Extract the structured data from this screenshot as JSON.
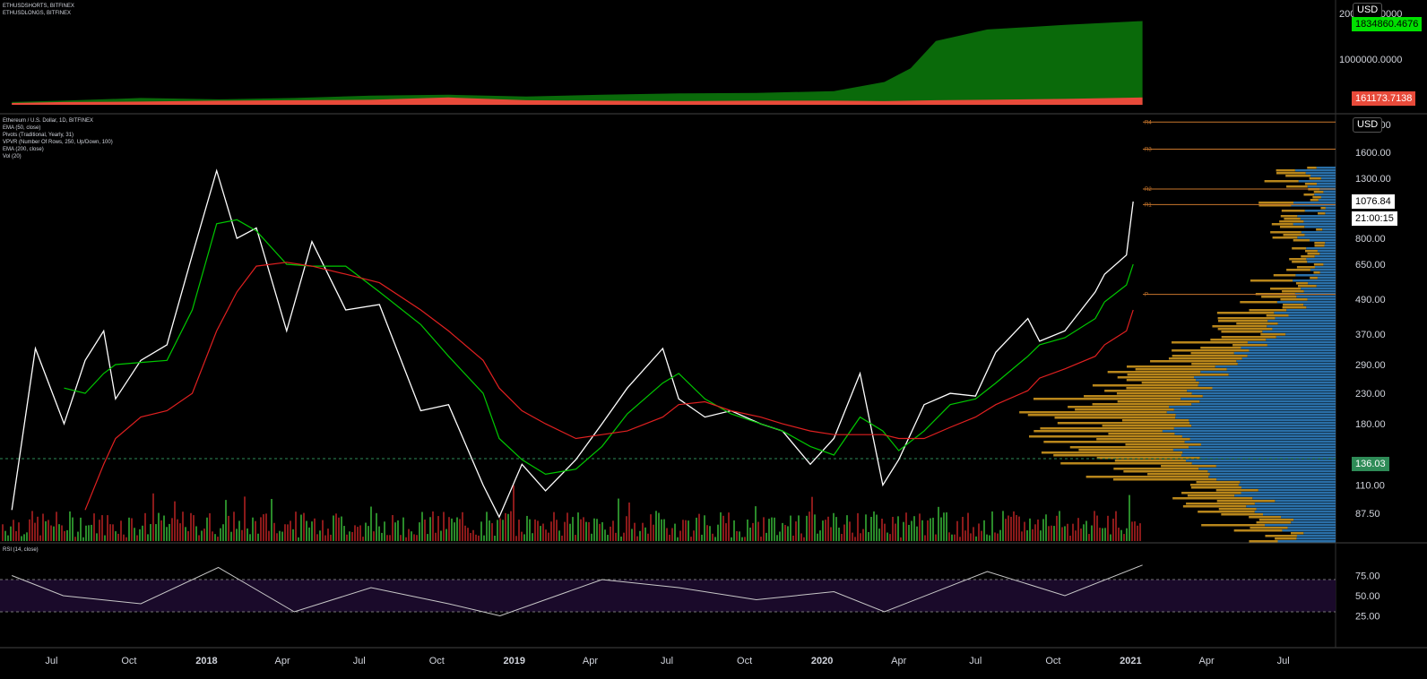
{
  "legends": {
    "top": [
      "ETHUSDSHORTS, BITFINEX",
      "ETHUSDLONGS, BITFINEX"
    ],
    "main": [
      "Ethereum / U.S. Dollar, 1D, BITFINEX",
      "EMA (50, close)",
      "Pivots (Traditional, Yearly, 31)",
      "VPVR (Number Of Rows, 250, Up/Down, 100)",
      "EMA (200, close)",
      "Vol (20)"
    ],
    "rsi": "RSI (14, close)"
  },
  "top_axis": {
    "currency": "USD",
    "labels": [
      {
        "text": "2000000.0000",
        "v": 2000000
      },
      {
        "text": "1000000.0000",
        "v": 1000000
      }
    ],
    "longs_tag": "1834860.4676",
    "shorts_tag": "161173.7138"
  },
  "main_axis": {
    "currency": "USD",
    "labels": [
      "2000.00",
      "1600.00",
      "1300.00",
      "1000.00",
      "800.00",
      "650.00",
      "490.00",
      "370.00",
      "290.00",
      "230.00",
      "180.00",
      "136.03",
      "110.00",
      "87.50"
    ],
    "last_price_tag": "1076.84",
    "countdown_tag": "21:00:15",
    "level_tag": "136.03"
  },
  "rsi_axis": {
    "labels": [
      "75.00",
      "50.00",
      "25.00"
    ]
  },
  "time_axis": {
    "labels": [
      "Jul",
      "Oct",
      "2018",
      "Apr",
      "Jul",
      "Oct",
      "2019",
      "Apr",
      "Jul",
      "Oct",
      "2020",
      "Apr",
      "Jul",
      "Oct",
      "2021",
      "Apr",
      "Jul"
    ]
  },
  "pivots": [
    "R4",
    "R3",
    "R2",
    "R1",
    "P"
  ],
  "colors": {
    "background": "#000000",
    "price": "#ffffff",
    "ema50": "#00c800",
    "ema200": "#e02020",
    "longs": "#0a6a0a",
    "shorts": "#e84a3a",
    "vol_up": "#2a8a2a",
    "vol_down": "#8b1a1a",
    "vpvr_up": "#2a6fa8",
    "vpvr_down": "#b8861b",
    "pivot": "#c8762c",
    "rsi_band": "#1a0a2a",
    "rsi_line": "#c8c8c8",
    "longs_tag": "#00e000",
    "shorts_tag": "#e84a3a"
  },
  "chart_data": [
    {
      "type": "area",
      "title": "ETHUSDSHORTS / ETHUSDLONGS, BITFINEX",
      "x": [
        "2017-05",
        "2017-07",
        "2017-10",
        "2018-01",
        "2018-04",
        "2018-07",
        "2018-10",
        "2019-01",
        "2019-04",
        "2019-07",
        "2019-10",
        "2020-01",
        "2020-03",
        "2020-04",
        "2020-05",
        "2020-07",
        "2020-10",
        "2021-01"
      ],
      "series": [
        {
          "name": "ETHUSDLONGS",
          "values": [
            60000,
            90000,
            150000,
            120000,
            150000,
            200000,
            220000,
            180000,
            220000,
            250000,
            260000,
            300000,
            500000,
            800000,
            1400000,
            1650000,
            1750000,
            1834860
          ]
        },
        {
          "name": "ETHUSDSHORTS",
          "values": [
            40000,
            60000,
            70000,
            90000,
            100000,
            110000,
            160000,
            100000,
            90000,
            80000,
            90000,
            90000,
            80000,
            90000,
            100000,
            110000,
            130000,
            161174
          ]
        }
      ],
      "ylim": [
        0,
        2100000
      ]
    },
    {
      "type": "line",
      "title": "Ethereum / U.S. Dollar, 1D, BITFINEX",
      "scale": "log",
      "x": [
        "2017-05-15",
        "2017-06-12",
        "2017-07-16",
        "2017-08-10",
        "2017-09-01",
        "2017-09-15",
        "2017-10-15",
        "2017-11-15",
        "2017-12-15",
        "2018-01-13",
        "2018-02-06",
        "2018-03-01",
        "2018-04-06",
        "2018-05-06",
        "2018-06-15",
        "2018-07-25",
        "2018-09-12",
        "2018-10-15",
        "2018-11-25",
        "2018-12-14",
        "2019-01-10",
        "2019-02-07",
        "2019-03-15",
        "2019-04-15",
        "2019-05-15",
        "2019-06-26",
        "2019-07-15",
        "2019-08-15",
        "2019-09-15",
        "2019-10-20",
        "2019-11-15",
        "2019-12-18",
        "2020-01-15",
        "2020-02-15",
        "2020-03-13",
        "2020-04-01",
        "2020-05-01",
        "2020-06-01",
        "2020-07-01",
        "2020-07-25",
        "2020-09-01",
        "2020-09-15",
        "2020-10-15",
        "2020-11-20",
        "2020-12-01",
        "2020-12-27",
        "2021-01-04"
      ],
      "series": [
        {
          "name": "Ethereum / U.S. Dollar, 1D, BITFINEX",
          "values": [
            90,
            330,
            180,
            300,
            380,
            220,
            300,
            340,
            700,
            1380,
            800,
            870,
            380,
            780,
            450,
            470,
            200,
            210,
            110,
            85,
            130,
            105,
            135,
            180,
            240,
            330,
            220,
            190,
            200,
            180,
            170,
            130,
            160,
            270,
            110,
            135,
            210,
            230,
            225,
            320,
            420,
            350,
            380,
            520,
            600,
            700,
            1076
          ]
        },
        {
          "name": "EMA (50, close)",
          "values": [
            null,
            null,
            240,
            230,
            270,
            290,
            295,
            300,
            450,
            900,
            930,
            850,
            650,
            640,
            640,
            520,
            400,
            310,
            230,
            160,
            135,
            120,
            125,
            150,
            195,
            250,
            270,
            220,
            195,
            180,
            170,
            150,
            140,
            190,
            170,
            145,
            170,
            210,
            220,
            250,
            310,
            340,
            360,
            420,
            480,
            550,
            650
          ]
        },
        {
          "name": "EMA (200, close)",
          "values": [
            null,
            null,
            null,
            90,
            130,
            160,
            190,
            200,
            230,
            380,
            520,
            640,
            660,
            640,
            600,
            560,
            450,
            380,
            300,
            240,
            200,
            180,
            160,
            165,
            170,
            190,
            210,
            215,
            200,
            190,
            180,
            170,
            165,
            165,
            165,
            160,
            160,
            175,
            190,
            210,
            235,
            260,
            280,
            310,
            340,
            380,
            450
          ]
        }
      ]
    },
    {
      "type": "line",
      "title": "RSI (14, close)",
      "x": [
        "2017-05",
        "2017-07",
        "2017-10",
        "2018-01",
        "2018-04",
        "2018-07",
        "2018-10",
        "2018-12",
        "2019-04",
        "2019-07",
        "2019-10",
        "2020-01",
        "2020-03",
        "2020-07",
        "2020-10",
        "2021-01"
      ],
      "series": [
        {
          "name": "RSI (14, close)",
          "values": [
            75,
            50,
            40,
            85,
            30,
            60,
            40,
            25,
            70,
            60,
            45,
            55,
            30,
            80,
            50,
            88
          ]
        }
      ],
      "ylim": [
        0,
        100
      ],
      "bands": [
        30,
        70
      ]
    }
  ]
}
